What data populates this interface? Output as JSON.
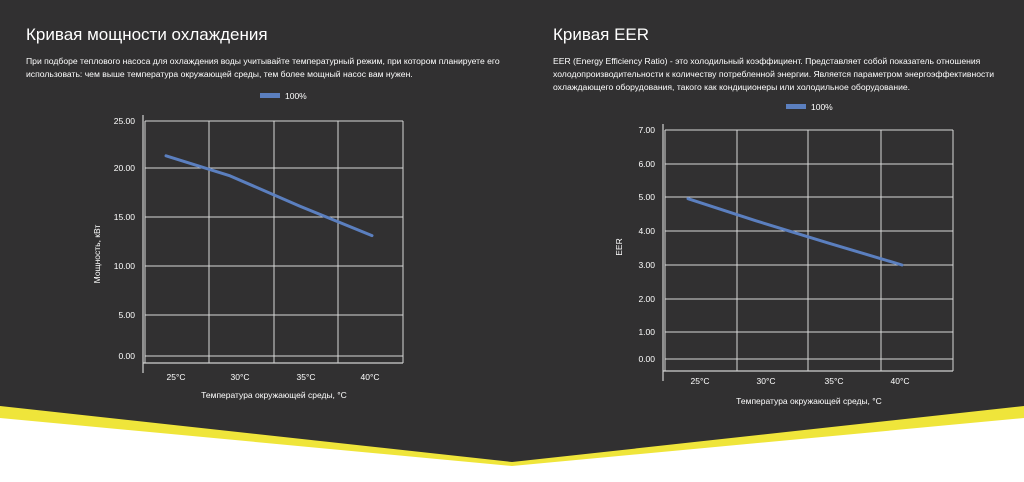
{
  "section_cooling": {
    "title": "Кривая мощности охлаждения",
    "description": "При подборе теплового насоса для охлаждения воды учитывайте температурный режим, при котором планируете его использовать: чем выше температура окружающей среды, тем более мощный насос вам нужен."
  },
  "section_eer": {
    "title": "Кривая EER",
    "description": "EER (Energy Efficiency Ratio) - это холодильный коэффициент. Представляет собой показатель отношения холодопроизводительности к количеству потребленной энергии. Является параметром энергоэффективности охлаждающего оборудования, такого как кондиционеры или холодильное оборудование."
  },
  "colors": {
    "background": "#313031",
    "line": "#5b7fbf",
    "grid": "#d8d8d8",
    "accent_yellow": "#efe53a"
  },
  "chart_data": [
    {
      "type": "line",
      "title": "",
      "xlabel": "Температура окружающей среды, °C",
      "ylabel": "Мощность, кВт",
      "categories": [
        "25°C",
        "30°C",
        "35°C",
        "40°C"
      ],
      "yticks": [
        "0.00",
        "5.00",
        "10.00",
        "15.00",
        "20.00",
        "25.00"
      ],
      "ylim": [
        0,
        25
      ],
      "grid": true,
      "legend": "top-center",
      "series": [
        {
          "name": "100%",
          "values": [
            21.3,
            19.2,
            16.1,
            13.1
          ]
        }
      ]
    },
    {
      "type": "line",
      "title": "",
      "xlabel": "Температура окружающей среды, °C",
      "ylabel": "EER",
      "categories": [
        "25°C",
        "30°C",
        "35°C",
        "40°C"
      ],
      "yticks": [
        "0.00",
        "1.00",
        "2.00",
        "3.00",
        "4.00",
        "5.00",
        "6.00",
        "7.00"
      ],
      "ylim": [
        0,
        7
      ],
      "grid": true,
      "legend": "top-center",
      "series": [
        {
          "name": "100%",
          "values": [
            4.95,
            4.3,
            3.65,
            3.0
          ]
        }
      ]
    }
  ]
}
